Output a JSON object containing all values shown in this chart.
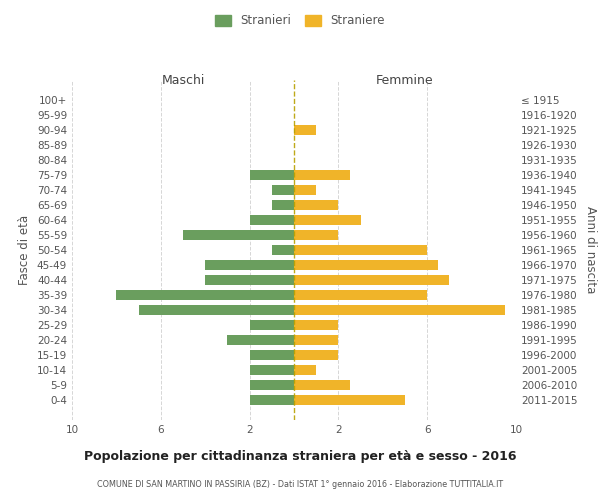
{
  "age_groups": [
    "100+",
    "95-99",
    "90-94",
    "85-89",
    "80-84",
    "75-79",
    "70-74",
    "65-69",
    "60-64",
    "55-59",
    "50-54",
    "45-49",
    "40-44",
    "35-39",
    "30-34",
    "25-29",
    "20-24",
    "15-19",
    "10-14",
    "5-9",
    "0-4"
  ],
  "birth_years": [
    "≤ 1915",
    "1916-1920",
    "1921-1925",
    "1926-1930",
    "1931-1935",
    "1936-1940",
    "1941-1945",
    "1946-1950",
    "1951-1955",
    "1956-1960",
    "1961-1965",
    "1966-1970",
    "1971-1975",
    "1976-1980",
    "1981-1985",
    "1986-1990",
    "1991-1995",
    "1996-2000",
    "2001-2005",
    "2006-2010",
    "2011-2015"
  ],
  "maschi": [
    0,
    0,
    0,
    0,
    0,
    2,
    1,
    1,
    2,
    5,
    1,
    4,
    4,
    8,
    7,
    2,
    3,
    2,
    2,
    2,
    2
  ],
  "femmine": [
    0,
    0,
    1,
    0,
    0,
    2.5,
    1,
    2,
    3,
    2,
    6,
    6.5,
    7,
    6,
    9.5,
    2,
    2,
    2,
    1,
    2.5,
    5
  ],
  "maschi_color": "#6a9e5e",
  "femmine_color": "#f0b429",
  "title": "Popolazione per cittadinanza straniera per età e sesso - 2016",
  "subtitle": "COMUNE DI SAN MARTINO IN PASSIRIA (BZ) - Dati ISTAT 1° gennaio 2016 - Elaborazione TUTTITALIA.IT",
  "ylabel_left": "Fasce di età",
  "ylabel_right": "Anni di nascita",
  "xlabel_left": "Maschi",
  "xlabel_right": "Femmine",
  "legend_stranieri": "Stranieri",
  "legend_straniere": "Straniere",
  "xlim": 10,
  "background_color": "#ffffff",
  "grid_color": "#cccccc",
  "tick_color": "#aaaaaa",
  "label_color": "#555555"
}
